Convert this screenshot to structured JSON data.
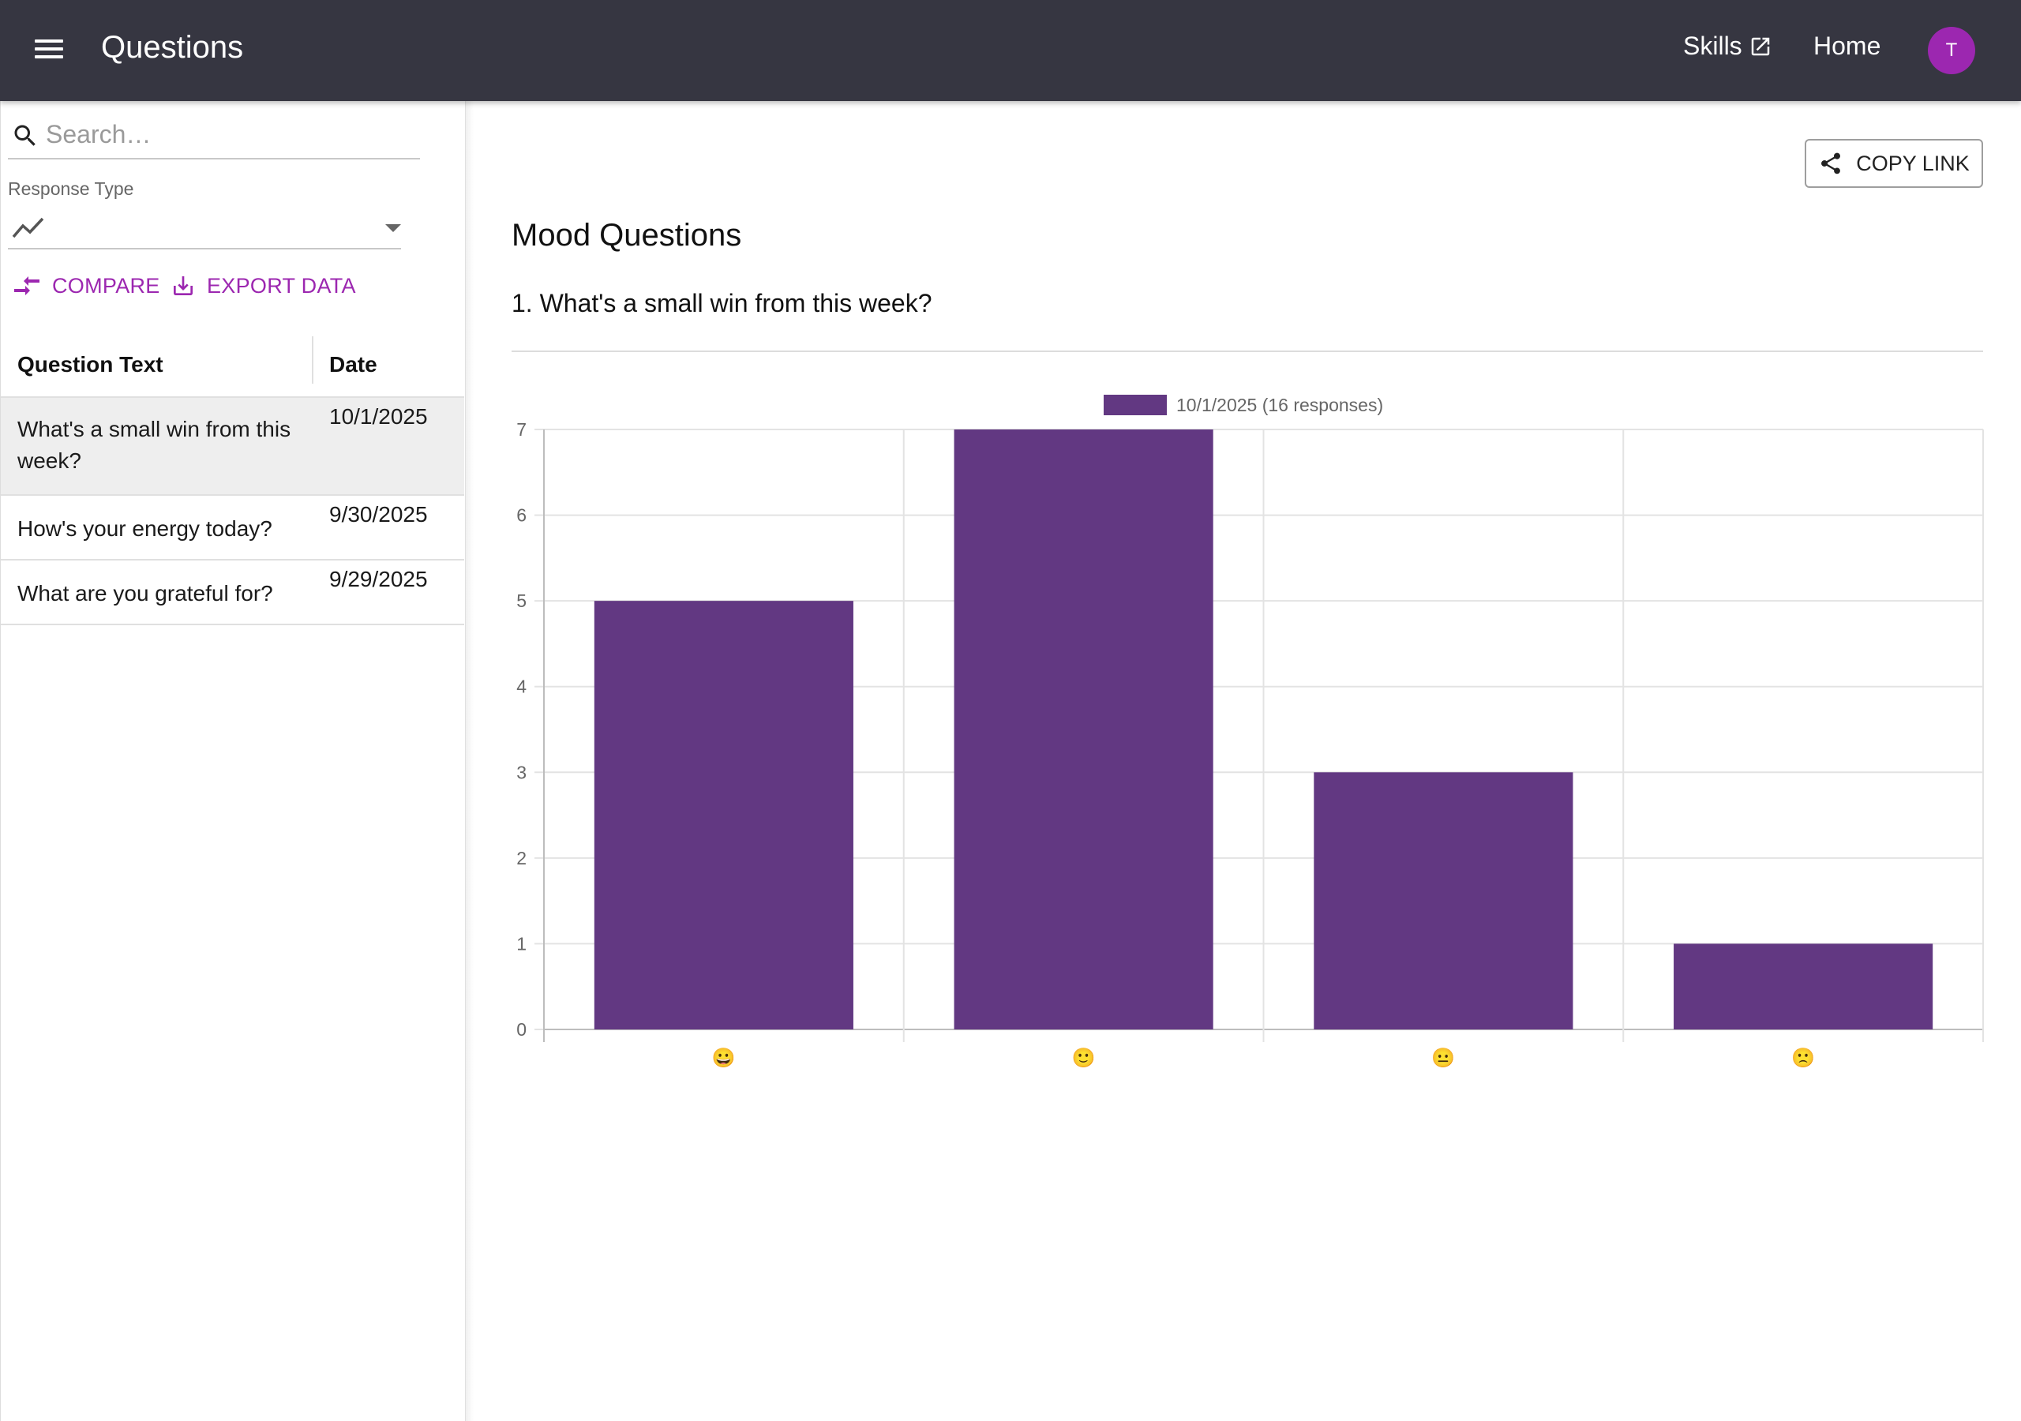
{
  "header": {
    "title": "Questions",
    "nav": {
      "skills": "Skills",
      "home": "Home"
    },
    "avatar_initial": "T"
  },
  "sidebar": {
    "search": {
      "placeholder": "Search…",
      "value": ""
    },
    "response_type": {
      "label": "Response Type",
      "icon": "line-chart-icon"
    },
    "actions": {
      "compare": "COMPARE",
      "export": "EXPORT DATA"
    },
    "table": {
      "headers": {
        "text": "Question Text",
        "date": "Date"
      },
      "rows": [
        {
          "text": "What's a small win from this week?",
          "date": "10/1/2025",
          "selected": true
        },
        {
          "text": "How's your energy today?",
          "date": "9/30/2025",
          "selected": false
        },
        {
          "text": "What are you grateful for?",
          "date": "9/29/2025",
          "selected": false
        }
      ]
    }
  },
  "main": {
    "copy_link": "COPY LINK",
    "section_title": "Mood Questions",
    "question_title": "1. What's a small win from this week?"
  },
  "colors": {
    "appbar": "#363641",
    "accent": "#9c27b0",
    "bar": "#623882"
  },
  "chart_data": {
    "type": "bar",
    "categories": [
      "😀",
      "🙂",
      "😐",
      "🙁"
    ],
    "series": [
      {
        "name": "10/1/2025 (16 responses)",
        "values": [
          5,
          7,
          3,
          1
        ]
      }
    ],
    "ylim": [
      0,
      7
    ],
    "yticks": [
      0,
      1,
      2,
      3,
      4,
      5,
      6,
      7
    ],
    "legend": "top-center",
    "grid": true
  }
}
